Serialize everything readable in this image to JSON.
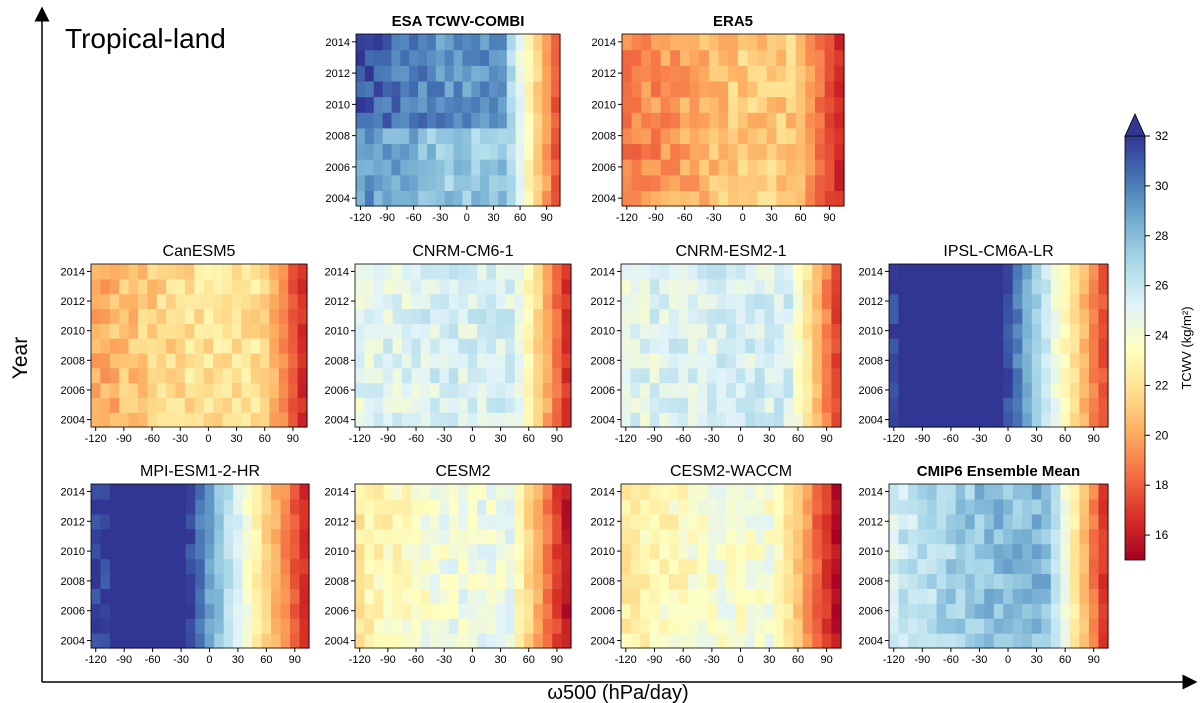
{
  "region_label": "Tropical-land",
  "ylabel": "Year",
  "xlabel": "ω500 (hPa/day)",
  "colorbar": {
    "label": "TCWV (kg/m²)",
    "min": 15,
    "max": 32,
    "ticks": [
      16,
      18,
      20,
      22,
      24,
      26,
      28,
      30,
      32
    ],
    "colormap": "RdYlBu",
    "extend": "max",
    "stops": [
      "#a50026",
      "#d73027",
      "#f46d43",
      "#fdae61",
      "#fee090",
      "#ffffbf",
      "#e0f3f8",
      "#abd9e9",
      "#74add1",
      "#4575b4",
      "#313695"
    ]
  },
  "chart_data": [
    {
      "type": "heatmap",
      "title": "ESA TCWV-COMBI",
      "bold": true,
      "summary": {
        "left": 29.5,
        "mid": 27.5,
        "right": 17.0,
        "transition": 45
      }
    },
    {
      "type": "heatmap",
      "title": "ERA5",
      "bold": true,
      "summary": {
        "left": 18.5,
        "mid": 21.0,
        "right": 16.0,
        "transition": 55
      }
    },
    {
      "type": "heatmap",
      "title": "CanESM5",
      "bold": false,
      "summary": {
        "left": 20.0,
        "mid": 22.0,
        "right": 16.0,
        "transition": 55
      }
    },
    {
      "type": "heatmap",
      "title": "CNRM-CM6-1",
      "bold": false,
      "summary": {
        "left": 25.0,
        "mid": 25.5,
        "right": 16.0,
        "transition": 45
      }
    },
    {
      "type": "heatmap",
      "title": "CNRM-ESM2-1",
      "bold": false,
      "summary": {
        "left": 25.0,
        "mid": 25.5,
        "right": 16.5,
        "transition": 50
      }
    },
    {
      "type": "heatmap",
      "title": "IPSL-CM6A-LR",
      "bold": false,
      "summary": {
        "left": 32.0,
        "mid": 32.0,
        "right": 17.0,
        "transition": -5,
        "saturated_from": -112
      }
    },
    {
      "type": "heatmap",
      "title": "MPI-ESM1-2-HR",
      "bold": false,
      "summary": {
        "left": 32.0,
        "mid": 32.0,
        "right": 16.0,
        "transition": -25,
        "saturated_from": -105
      }
    },
    {
      "type": "heatmap",
      "title": "CESM2",
      "bold": false,
      "summary": {
        "left": 22.5,
        "mid": 24.5,
        "right": 15.0,
        "transition": 40
      }
    },
    {
      "type": "heatmap",
      "title": "CESM2-WACCM",
      "bold": false,
      "summary": {
        "left": 22.5,
        "mid": 24.0,
        "right": 15.0,
        "transition": 35
      }
    },
    {
      "type": "heatmap",
      "title": "CMIP6 Ensemble Mean",
      "bold": true,
      "summary": {
        "left": 25.5,
        "mid": 28.0,
        "right": 16.0,
        "transition": 40
      }
    }
  ],
  "axes": {
    "x_ticks": [
      -120,
      -90,
      -60,
      -30,
      0,
      30,
      60,
      90
    ],
    "x_range": [
      -125,
      105
    ],
    "y_ticks": [
      2004,
      2006,
      2008,
      2010,
      2012,
      2014
    ],
    "y_range": [
      2003.5,
      2014.5
    ]
  }
}
